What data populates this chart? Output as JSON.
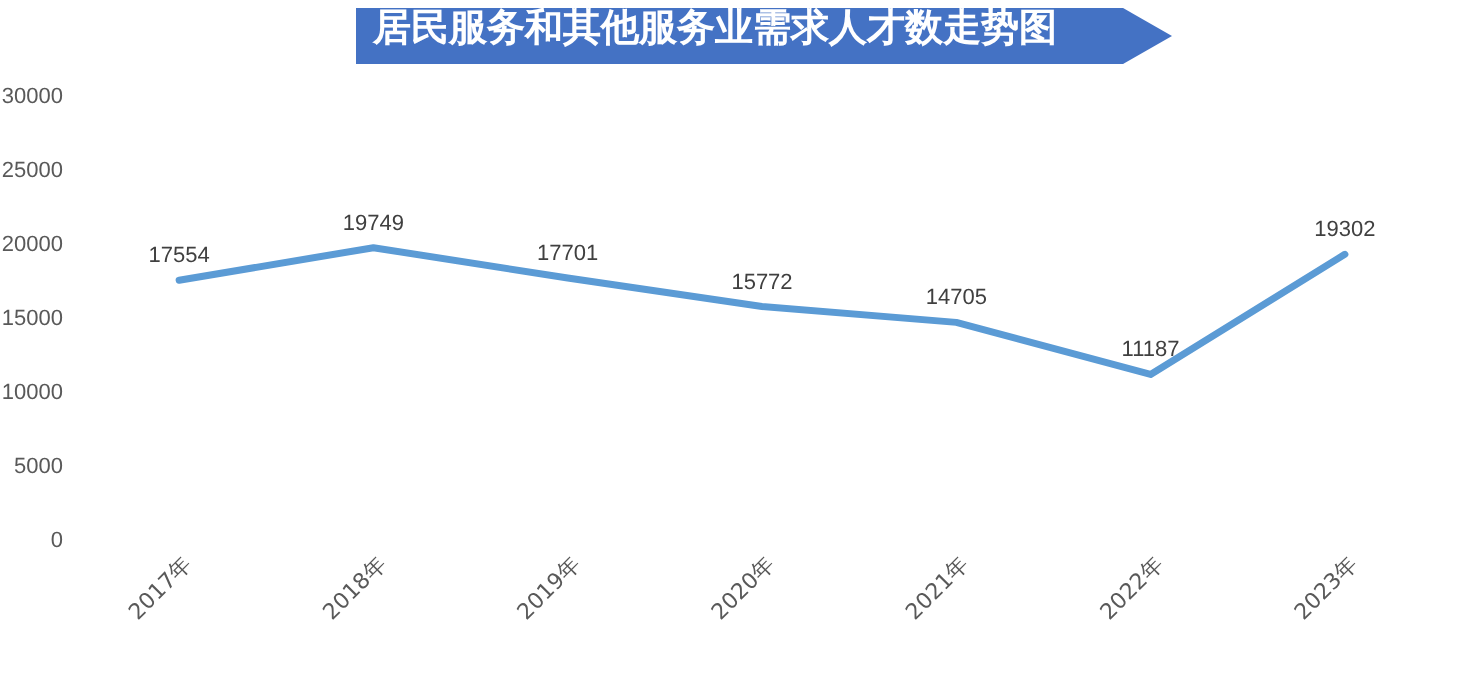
{
  "chart_data": {
    "type": "line",
    "title": "居民服务和其他服务业需求人才数走势图",
    "categories": [
      "2017年",
      "2018年",
      "2019年",
      "2020年",
      "2021年",
      "2022年",
      "2023年"
    ],
    "series": [
      {
        "color": "#5b9bd5",
        "values": [
          17554,
          19749,
          17701,
          15772,
          14705,
          11187,
          19302
        ]
      }
    ],
    "ylim": [
      0,
      30000
    ],
    "yticks": [
      0,
      5000,
      10000,
      15000,
      20000,
      25000,
      30000
    ],
    "grid": false,
    "legend": false,
    "marker": "none",
    "line_style": "solid",
    "data_labels": true
  }
}
